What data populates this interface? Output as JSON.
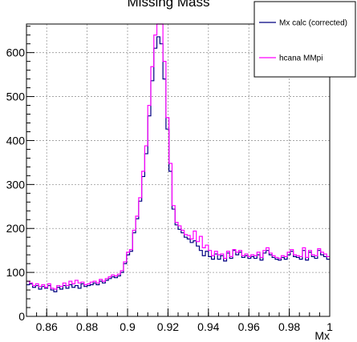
{
  "chart_data": {
    "type": "line",
    "title": "Missing Mass",
    "xlabel": "Mx",
    "ylabel": "",
    "xlim": [
      0.85,
      1.0
    ],
    "ylim": [
      0,
      665
    ],
    "grid": true,
    "legend_position": "top-right",
    "x_ticks": [
      0.86,
      0.88,
      0.9,
      0.92,
      0.94,
      0.96,
      0.98,
      1
    ],
    "x_tick_labels": [
      "0.86",
      "0.88",
      "0.9",
      "0.92",
      "0.94",
      "0.96",
      "0.98",
      "1"
    ],
    "y_ticks": [
      0,
      100,
      200,
      300,
      400,
      500,
      600
    ],
    "y_tick_labels": [
      "0",
      "100",
      "200",
      "300",
      "400",
      "500",
      "600"
    ],
    "bin_width": 0.0015,
    "bin_start": 0.85,
    "series": [
      {
        "name": "Mx calc (corrected)",
        "color": "#000080",
        "values": [
          72,
          74,
          66,
          70,
          62,
          68,
          64,
          70,
          60,
          56,
          66,
          62,
          70,
          64,
          72,
          66,
          70,
          64,
          74,
          68,
          70,
          72,
          76,
          72,
          80,
          76,
          82,
          86,
          90,
          88,
          92,
          100,
          120,
          140,
          148,
          190,
          222,
          262,
          318,
          370,
          456,
          536,
          610,
          636,
          620,
          540,
          426,
          330,
          244,
          208,
          198,
          190,
          180,
          176,
          168,
          172,
          160,
          150,
          138,
          148,
          136,
          130,
          142,
          130,
          138,
          126,
          144,
          132,
          150,
          140,
          146,
          134,
          138,
          132,
          136,
          132,
          140,
          128,
          144,
          150,
          140,
          134,
          130,
          128,
          134,
          130,
          140,
          148,
          136,
          134,
          130,
          150,
          128,
          146,
          136,
          132,
          150,
          140,
          136,
          130
        ]
      },
      {
        "name": "hcana MMpi",
        "color": "#ff00ff",
        "values": [
          80,
          76,
          70,
          74,
          68,
          72,
          66,
          74,
          64,
          62,
          70,
          68,
          76,
          70,
          80,
          74,
          82,
          76,
          78,
          72,
          74,
          78,
          80,
          76,
          84,
          80,
          86,
          90,
          94,
          92,
          96,
          104,
          124,
          146,
          152,
          196,
          228,
          270,
          330,
          388,
          480,
          568,
          640,
          665,
          665,
          580,
          452,
          348,
          252,
          214,
          206,
          196,
          186,
          184,
          176,
          194,
          170,
          182,
          156,
          162,
          150,
          138,
          148,
          140,
          142,
          132,
          148,
          136,
          152,
          146,
          150,
          138,
          142,
          136,
          140,
          138,
          146,
          134,
          150,
          156,
          144,
          138,
          134,
          132,
          138,
          136,
          146,
          152,
          140,
          138,
          136,
          156,
          134,
          150,
          140,
          138,
          154,
          146,
          142,
          136
        ]
      }
    ]
  }
}
